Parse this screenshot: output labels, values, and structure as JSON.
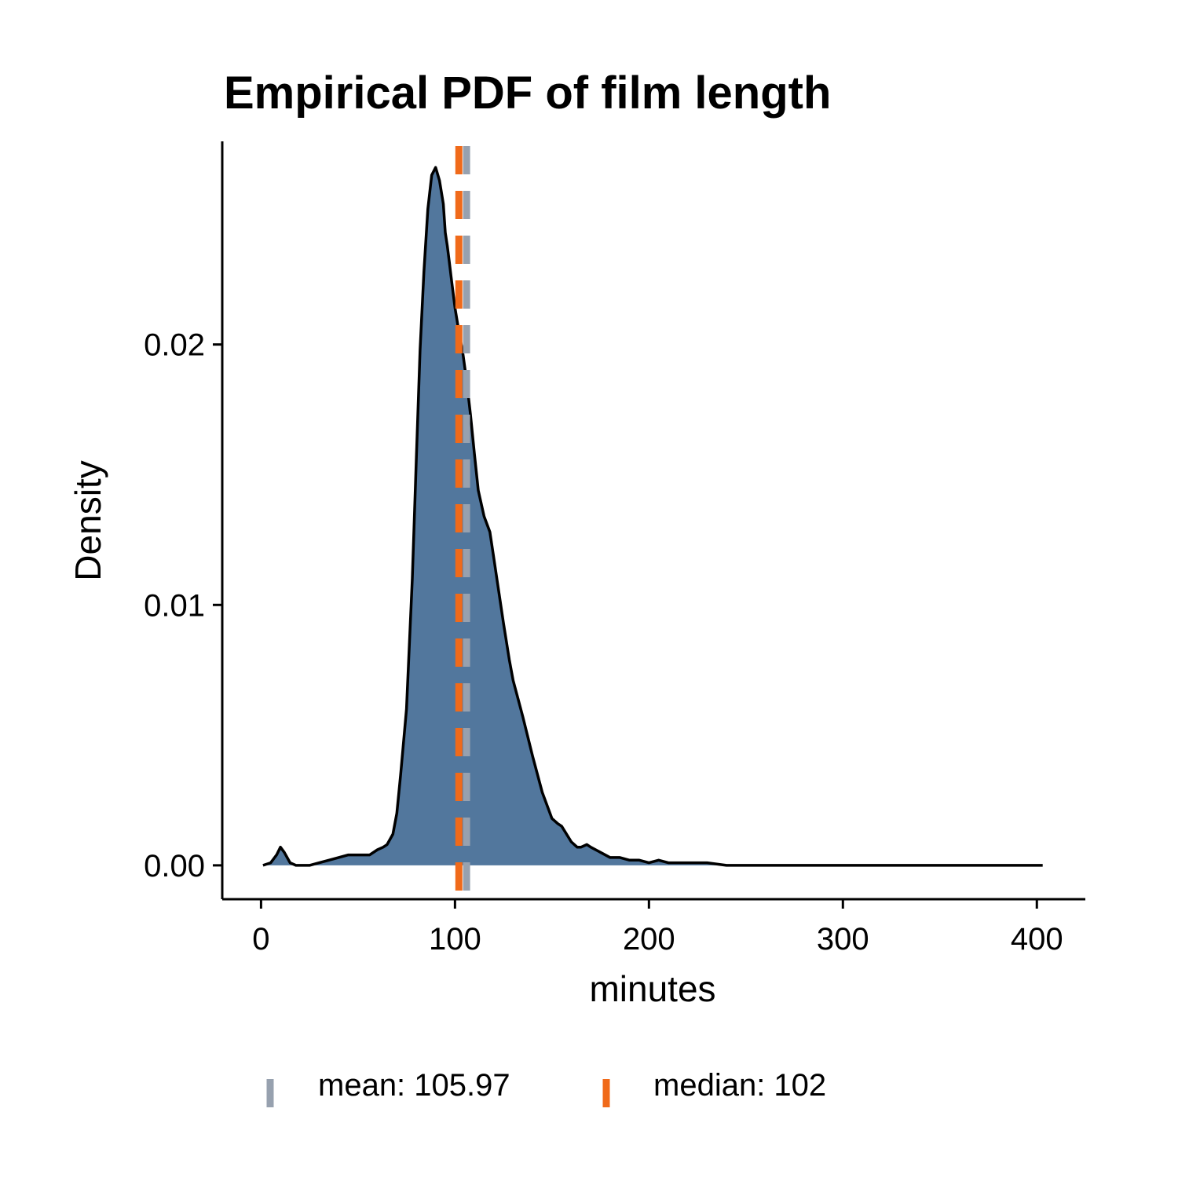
{
  "chart_data": {
    "type": "area",
    "title": "Empirical PDF of film length",
    "xlabel": "minutes",
    "ylabel": "Density",
    "xlim": [
      -20,
      425
    ],
    "ylim": [
      -0.0013,
      0.0278
    ],
    "x_ticks": [
      0,
      100,
      200,
      300,
      400
    ],
    "x_tick_labels": [
      "0",
      "100",
      "200",
      "300",
      "400"
    ],
    "y_ticks": [
      0.0,
      0.01,
      0.02
    ],
    "y_tick_labels": [
      "0.00",
      "0.01",
      "0.02"
    ],
    "grid": false,
    "fill_color": "#52779D",
    "line_color": "#000000",
    "density": {
      "x": [
        1,
        5,
        8,
        10,
        12,
        15,
        18,
        25,
        30,
        35,
        40,
        45,
        48,
        50,
        53,
        56,
        60,
        63,
        65,
        68,
        70,
        72,
        75,
        78,
        80,
        82,
        84,
        86,
        88,
        90,
        92,
        94,
        95,
        96,
        97,
        98,
        100,
        102,
        104,
        106,
        108,
        110,
        112,
        115,
        118,
        120,
        122,
        125,
        128,
        130,
        135,
        140,
        145,
        150,
        153,
        155,
        160,
        163,
        165,
        168,
        170,
        175,
        180,
        185,
        190,
        195,
        200,
        205,
        210,
        215,
        220,
        230,
        240,
        250,
        270,
        300,
        330,
        370,
        400,
        403
      ],
      "y": [
        0.0,
        0.0001,
        0.0004,
        0.0007,
        0.0005,
        0.0001,
        0.0,
        0.0,
        0.0001,
        0.0002,
        0.0003,
        0.0004,
        0.0004,
        0.0004,
        0.0004,
        0.0004,
        0.0006,
        0.0007,
        0.0008,
        0.0012,
        0.002,
        0.0035,
        0.006,
        0.011,
        0.0155,
        0.0198,
        0.0228,
        0.0252,
        0.0265,
        0.0268,
        0.0263,
        0.0254,
        0.0243,
        0.0238,
        0.0232,
        0.0226,
        0.0214,
        0.0205,
        0.0197,
        0.0186,
        0.0173,
        0.0158,
        0.0144,
        0.0134,
        0.0128,
        0.0118,
        0.0108,
        0.0093,
        0.0079,
        0.0071,
        0.0057,
        0.0042,
        0.0028,
        0.0018,
        0.0016,
        0.0015,
        0.0009,
        0.0007,
        0.0007,
        0.0008,
        0.0007,
        0.0005,
        0.0003,
        0.0003,
        0.0002,
        0.0002,
        0.0001,
        0.0002,
        0.0001,
        0.0001,
        0.0001,
        0.0001,
        0.0,
        0.0,
        0.0,
        0.0,
        0.0,
        0.0,
        0.0,
        0.0
      ]
    },
    "reference_lines": [
      {
        "name": "mean: 105.97",
        "x": 105.97,
        "color": "#97A1AF",
        "style": "dashed"
      },
      {
        "name": "median: 102",
        "x": 102,
        "color": "#F06A1A",
        "style": "dashed"
      }
    ],
    "legend": {
      "position": "bottom",
      "entries": [
        {
          "label": "mean: 105.97",
          "color": "#97A1AF"
        },
        {
          "label": "median: 102",
          "color": "#F06A1A"
        }
      ]
    }
  }
}
